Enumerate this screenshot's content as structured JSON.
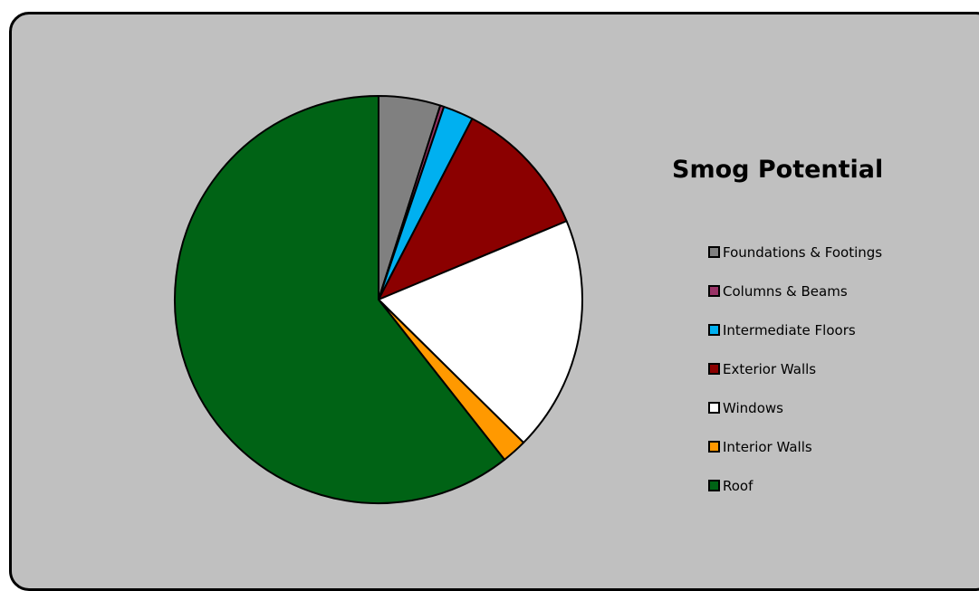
{
  "chart_data": {
    "type": "pie",
    "title": "Smog Potential",
    "legend_position": "right",
    "slices": [
      {
        "label": "Foundations & Footings",
        "value": 4.9,
        "color": "#808080"
      },
      {
        "label": "Columns & Beams",
        "value": 0.3,
        "color": "#993366"
      },
      {
        "label": "Intermediate Floors",
        "value": 2.4,
        "color": "#00b0f0"
      },
      {
        "label": "Exterior Walls",
        "value": 11.1,
        "color": "#8b0000"
      },
      {
        "label": "Windows",
        "value": 18.7,
        "color": "#ffffff"
      },
      {
        "label": "Interior Walls",
        "value": 2.0,
        "color": "#ff9900"
      },
      {
        "label": "Roof",
        "value": 60.6,
        "color": "#006315"
      }
    ]
  },
  "colors": {
    "background": "#c0c0c0",
    "border": "#000000"
  }
}
